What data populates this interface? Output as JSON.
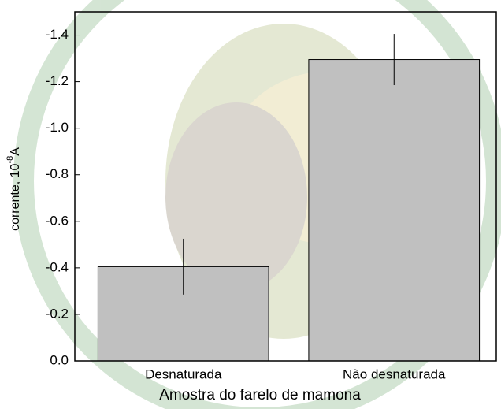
{
  "chart_data": {
    "type": "bar",
    "categories": [
      "Desnaturada",
      "Não desnaturada"
    ],
    "values": [
      -0.405,
      -1.295
    ],
    "errors": [
      0.12,
      0.11
    ],
    "color": "#c0c0c0",
    "xlabel": "Amostra do farelo de mamona",
    "ylabel_parts": [
      "corrente, 10",
      "-8",
      "A"
    ],
    "ylim": [
      0,
      -1.5
    ],
    "yticks": [
      {
        "value": 0,
        "label": "0.0"
      },
      -0.2,
      -0.4,
      -0.6,
      -0.8,
      {
        "value": -1,
        "label": "-1.0"
      },
      -1.2,
      -1.4
    ]
  }
}
